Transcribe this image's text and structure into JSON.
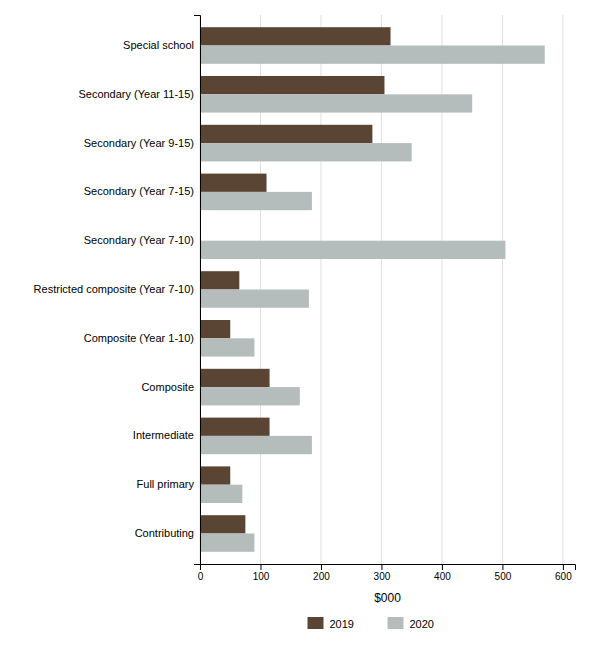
{
  "chart_data": {
    "type": "bar",
    "orientation": "horizontal",
    "categories": [
      "Special school",
      "Secondary (Year 11-15)",
      "Secondary (Year 9-15)",
      "Secondary (Year 7-15)",
      "Secondary (Year 7-10)",
      "Restricted composite (Year 7-10)",
      "Composite (Year 1-10)",
      "Composite",
      "Intermediate",
      "Full primary",
      "Contributing"
    ],
    "series": [
      {
        "name": "2019",
        "color": "#5a4535",
        "values": [
          315,
          305,
          285,
          110,
          0,
          65,
          50,
          115,
          115,
          50,
          75
        ]
      },
      {
        "name": "2020",
        "color": "#b5bcbc",
        "values": [
          570,
          450,
          350,
          185,
          505,
          180,
          90,
          165,
          185,
          70,
          90
        ]
      }
    ],
    "xlabel": "$000",
    "xlim": [
      0,
      620
    ],
    "xticks": [
      0,
      100,
      200,
      300,
      400,
      500,
      600
    ],
    "grid": true,
    "legend": "bottom"
  }
}
